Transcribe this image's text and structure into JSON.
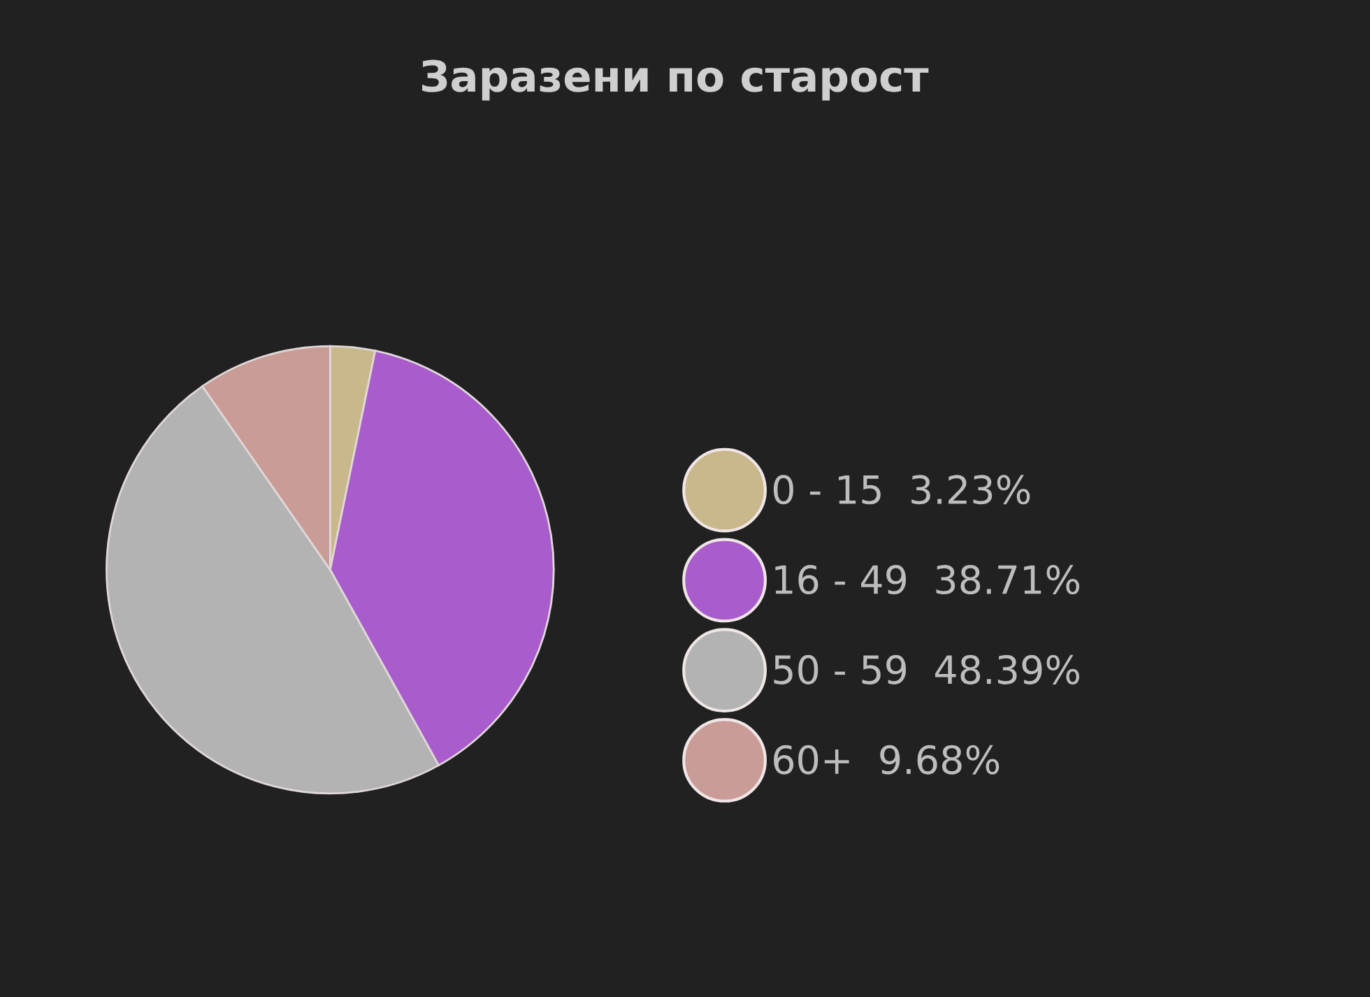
{
  "chart_data": {
    "type": "pie",
    "title": "Заразени по старост",
    "categories": [
      "0 - 15",
      "16 - 49",
      "50 - 59",
      "60+"
    ],
    "values": [
      3.23,
      38.71,
      48.39,
      9.68
    ],
    "value_labels": [
      "3.23%",
      "38.71%",
      "48.39%",
      "9.68%"
    ],
    "colors": [
      "#c9b88c",
      "#a95ccb",
      "#b3b3b3",
      "#c99c97"
    ],
    "legend": "right"
  }
}
